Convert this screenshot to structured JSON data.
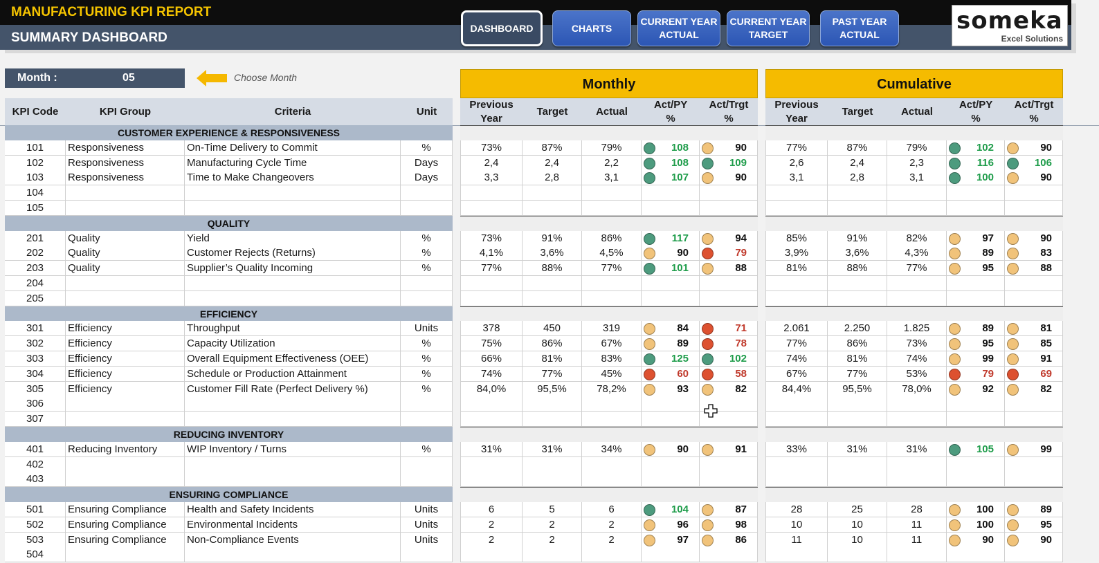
{
  "header": {
    "title": "MANUFACTURING KPI REPORT",
    "subtitle": "SUMMARY DASHBOARD",
    "nav": [
      {
        "label": "DASHBOARD",
        "active": true
      },
      {
        "label": "CHARTS",
        "active": false
      },
      {
        "label": "CURRENT YEAR ACTUAL",
        "active": false
      },
      {
        "label": "CURRENT YEAR TARGET",
        "active": false
      },
      {
        "label": "PAST YEAR ACTUAL",
        "active": false
      }
    ],
    "logo": {
      "brand": "someka",
      "tagline": "Excel Solutions"
    }
  },
  "month": {
    "label": "Month :",
    "value": "05",
    "hint": "Choose Month"
  },
  "panels": {
    "monthly": "Monthly",
    "cumulative": "Cumulative"
  },
  "columns": {
    "left": [
      "KPI Code",
      "KPI Group",
      "Criteria",
      "Unit"
    ],
    "values": [
      "Previous Year",
      "Target",
      "Actual",
      "Act/PY %",
      "Act/Trgt %"
    ]
  },
  "colors": {
    "green": "#4d9b7e",
    "yellow": "#f1c37a",
    "red": "#dd5130",
    "accent": "#f5bb00",
    "navy": "#44546a"
  },
  "sections": [
    {
      "title": "CUSTOMER EXPERIENCE & RESPONSIVENESS",
      "rows": [
        {
          "code": "101",
          "group": "Responsiveness",
          "criteria": "On-Time Delivery to Commit",
          "unit": "%",
          "m": [
            "73%",
            "87%",
            "79%",
            "108",
            "90"
          ],
          "mc": [
            "g",
            "y"
          ],
          "c": [
            "77%",
            "87%",
            "79%",
            "102",
            "90"
          ],
          "cc": [
            "g",
            "y"
          ]
        },
        {
          "code": "102",
          "group": "Responsiveness",
          "criteria": "Manufacturing Cycle Time",
          "unit": "Days",
          "m": [
            "2,4",
            "2,4",
            "2,2",
            "108",
            "109"
          ],
          "mc": [
            "g",
            "g"
          ],
          "c": [
            "2,6",
            "2,4",
            "2,3",
            "116",
            "106"
          ],
          "cc": [
            "g",
            "g"
          ]
        },
        {
          "code": "103",
          "group": "Responsiveness",
          "criteria": "Time to Make Changeovers",
          "unit": "Days",
          "m": [
            "3,3",
            "2,8",
            "3,1",
            "107",
            "90"
          ],
          "mc": [
            "g",
            "y"
          ],
          "c": [
            "3,1",
            "2,8",
            "3,1",
            "100",
            "90"
          ],
          "cc": [
            "g",
            "y"
          ]
        },
        {
          "code": "104"
        },
        {
          "code": "105"
        }
      ]
    },
    {
      "title": "QUALITY",
      "rows": [
        {
          "code": "201",
          "group": "Quality",
          "criteria": "Yield",
          "unit": "%",
          "m": [
            "73%",
            "91%",
            "86%",
            "117",
            "94"
          ],
          "mc": [
            "g",
            "y"
          ],
          "c": [
            "85%",
            "91%",
            "82%",
            "97",
            "90"
          ],
          "cc": [
            "y",
            "y"
          ]
        },
        {
          "code": "202",
          "group": "Quality",
          "criteria": "Customer Rejects (Returns)",
          "unit": "%",
          "m": [
            "4,1%",
            "3,6%",
            "4,5%",
            "90",
            "79"
          ],
          "mc": [
            "y",
            "r"
          ],
          "c": [
            "3,9%",
            "3,6%",
            "4,3%",
            "89",
            "83"
          ],
          "cc": [
            "y",
            "y"
          ]
        },
        {
          "code": "203",
          "group": "Quality",
          "criteria": "Supplier’s Quality Incoming",
          "unit": "%",
          "m": [
            "77%",
            "88%",
            "77%",
            "101",
            "88"
          ],
          "mc": [
            "g",
            "y"
          ],
          "c": [
            "81%",
            "88%",
            "77%",
            "95",
            "88"
          ],
          "cc": [
            "y",
            "y"
          ]
        },
        {
          "code": "204"
        },
        {
          "code": "205"
        }
      ]
    },
    {
      "title": "EFFICIENCY",
      "rows": [
        {
          "code": "301",
          "group": "Efficiency",
          "criteria": "Throughput",
          "unit": "Units",
          "m": [
            "378",
            "450",
            "319",
            "84",
            "71"
          ],
          "mc": [
            "y",
            "r"
          ],
          "c": [
            "2.061",
            "2.250",
            "1.825",
            "89",
            "81"
          ],
          "cc": [
            "y",
            "y"
          ]
        },
        {
          "code": "302",
          "group": "Efficiency",
          "criteria": "Capacity Utilization",
          "unit": "%",
          "m": [
            "75%",
            "86%",
            "67%",
            "89",
            "78"
          ],
          "mc": [
            "y",
            "r"
          ],
          "c": [
            "77%",
            "86%",
            "73%",
            "95",
            "85"
          ],
          "cc": [
            "y",
            "y"
          ]
        },
        {
          "code": "303",
          "group": "Efficiency",
          "criteria": "Overall Equipment Effectiveness (OEE)",
          "unit": "%",
          "m": [
            "66%",
            "81%",
            "83%",
            "125",
            "102"
          ],
          "mc": [
            "g",
            "g"
          ],
          "c": [
            "74%",
            "81%",
            "74%",
            "99",
            "91"
          ],
          "cc": [
            "y",
            "y"
          ]
        },
        {
          "code": "304",
          "group": "Efficiency",
          "criteria": "Schedule or Production Attainment",
          "unit": "%",
          "m": [
            "74%",
            "77%",
            "45%",
            "60",
            "58"
          ],
          "mc": [
            "r",
            "r"
          ],
          "c": [
            "67%",
            "77%",
            "53%",
            "79",
            "69"
          ],
          "cc": [
            "r",
            "r"
          ]
        },
        {
          "code": "305",
          "group": "Efficiency",
          "criteria": "Customer Fill Rate (Perfect Delivery %)",
          "unit": "%",
          "m": [
            "84,0%",
            "95,5%",
            "78,2%",
            "93",
            "82"
          ],
          "mc": [
            "y",
            "y"
          ],
          "c": [
            "84,4%",
            "95,5%",
            "78,0%",
            "92",
            "82"
          ],
          "cc": [
            "y",
            "y"
          ]
        },
        {
          "code": "306"
        },
        {
          "code": "307"
        }
      ]
    },
    {
      "title": "REDUCING INVENTORY",
      "rows": [
        {
          "code": "401",
          "group": "Reducing Inventory",
          "criteria": "WIP Inventory / Turns",
          "unit": "%",
          "m": [
            "31%",
            "31%",
            "34%",
            "90",
            "91"
          ],
          "mc": [
            "y",
            "y"
          ],
          "c": [
            "33%",
            "31%",
            "31%",
            "105",
            "99"
          ],
          "cc": [
            "g",
            "y"
          ]
        },
        {
          "code": "402"
        },
        {
          "code": "403"
        }
      ]
    },
    {
      "title": "ENSURING COMPLIANCE",
      "rows": [
        {
          "code": "501",
          "group": "Ensuring Compliance",
          "criteria": "Health and Safety Incidents",
          "unit": "Units",
          "m": [
            "6",
            "5",
            "6",
            "104",
            "87"
          ],
          "mc": [
            "g",
            "y"
          ],
          "c": [
            "28",
            "25",
            "28",
            "100",
            "89"
          ],
          "cc": [
            "y",
            "y"
          ]
        },
        {
          "code": "502",
          "group": "Ensuring Compliance",
          "criteria": "Environmental Incidents",
          "unit": "Units",
          "m": [
            "2",
            "2",
            "2",
            "96",
            "98"
          ],
          "mc": [
            "y",
            "y"
          ],
          "c": [
            "10",
            "10",
            "11",
            "100",
            "95"
          ],
          "cc": [
            "y",
            "y"
          ]
        },
        {
          "code": "503",
          "group": "Ensuring Compliance",
          "criteria": "Non-Compliance Events",
          "unit": "Units",
          "m": [
            "2",
            "2",
            "2",
            "97",
            "86"
          ],
          "mc": [
            "y",
            "y"
          ],
          "c": [
            "11",
            "10",
            "11",
            "90",
            "90"
          ],
          "cc": [
            "y",
            "y"
          ]
        },
        {
          "code": "504"
        }
      ]
    }
  ]
}
